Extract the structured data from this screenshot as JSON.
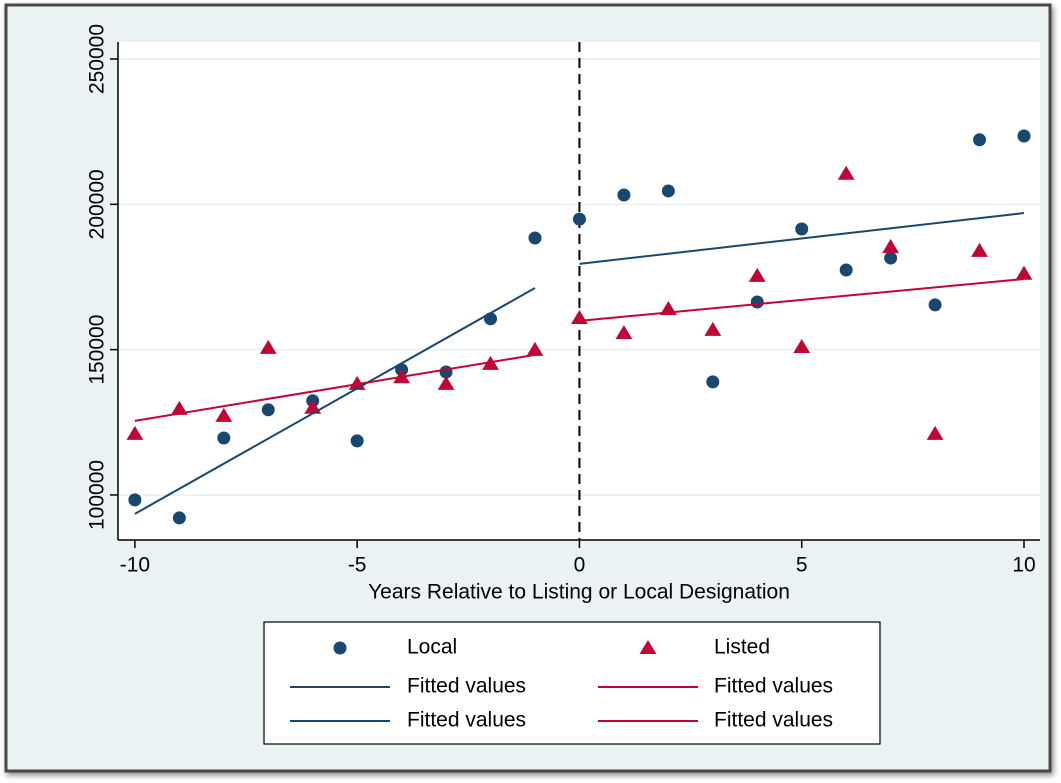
{
  "chart_data": {
    "type": "scatter",
    "x_label": "Years Relative to Listing or Local Designation",
    "xlim": [
      -10.38,
      10.36
    ],
    "ylim": [
      84500,
      255850
    ],
    "xticks": [
      -10,
      -5,
      0,
      5,
      10
    ],
    "yticks": [
      100000,
      150000,
      200000,
      250000
    ],
    "grid": true,
    "xline": 0,
    "series": [
      {
        "name": "Local",
        "kind": "scatter",
        "marker": "circle",
        "color": "#1a476f",
        "x": [
          -10,
          -9,
          -8,
          -7,
          -6,
          -5,
          -4,
          -3,
          -2,
          -1,
          0,
          1,
          2,
          3,
          4,
          5,
          6,
          7,
          8,
          9,
          10
        ],
        "values": [
          98300,
          92100,
          119600,
          129300,
          132400,
          118600,
          143100,
          142300,
          160600,
          188400,
          194900,
          203200,
          204600,
          138900,
          166400,
          191500,
          177400,
          181500,
          165400,
          222200,
          223500
        ]
      },
      {
        "name": "Listed",
        "kind": "scatter",
        "marker": "triangle",
        "color": "#c10534",
        "x": [
          -10,
          -9,
          -8,
          -7,
          -6,
          -5,
          -4,
          -3,
          -2,
          -1,
          0,
          1,
          2,
          3,
          4,
          5,
          6,
          7,
          8,
          9,
          10
        ],
        "values": [
          121000,
          129600,
          127200,
          150600,
          130000,
          138200,
          140500,
          138200,
          145100,
          149900,
          160900,
          155700,
          164000,
          156800,
          175400,
          150900,
          210500,
          185300,
          121000,
          184000,
          176100
        ]
      },
      {
        "name": "Fitted values",
        "kind": "line",
        "color": "#1a476f",
        "x": [
          -10,
          -1
        ],
        "values": [
          93500,
          171200
        ]
      },
      {
        "name": "Fitted values",
        "kind": "line",
        "color": "#c10534",
        "x": [
          -10,
          -1
        ],
        "values": [
          125500,
          148200
        ]
      },
      {
        "name": "Fitted values",
        "kind": "line",
        "color": "#1a476f",
        "x": [
          0,
          10
        ],
        "values": [
          179500,
          197000
        ]
      },
      {
        "name": "Fitted values",
        "kind": "line",
        "color": "#c10534",
        "x": [
          0,
          10
        ],
        "values": [
          159900,
          174300
        ]
      }
    ]
  }
}
